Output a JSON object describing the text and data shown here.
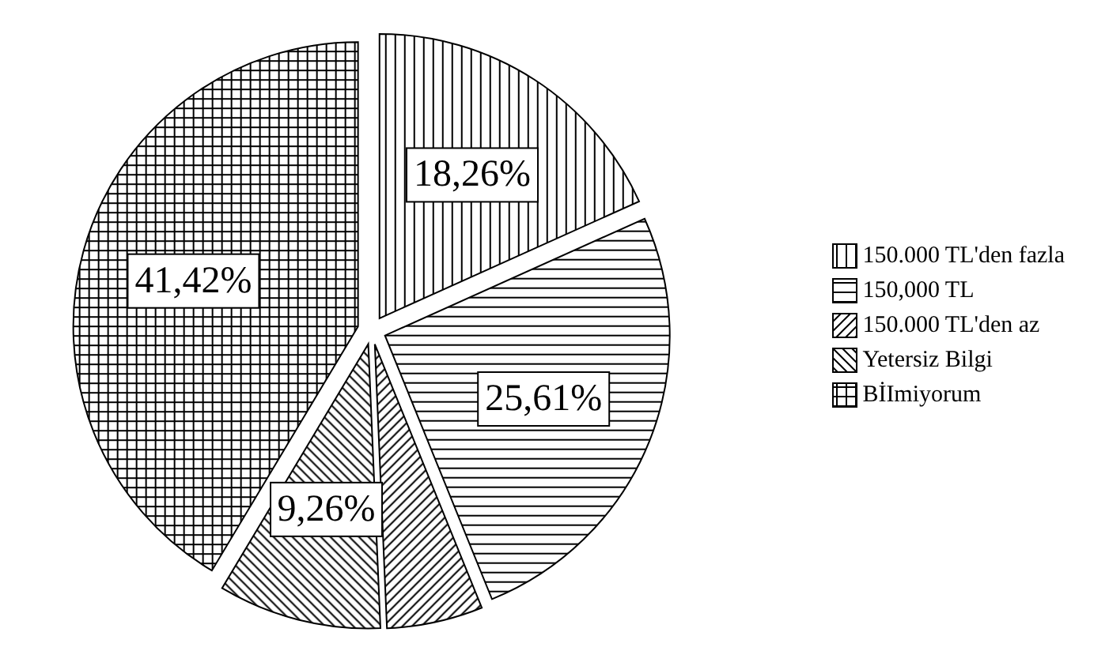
{
  "chart_data": {
    "type": "pie",
    "categories": [
      "150.000 TL'den fazla",
      "150,000 TL",
      "150.000 TL'den az",
      "Yetersiz Bilgi",
      "BİImiyorum"
    ],
    "values": [
      18.26,
      25.61,
      5.45,
      9.26,
      41.42
    ],
    "value_labels": [
      "18,26%",
      "25,61%",
      null,
      "9,26%",
      "41,42%"
    ],
    "colors": [
      "#000000",
      "#000000",
      "#000000",
      "#000000",
      "#000000"
    ],
    "legend": "right"
  }
}
